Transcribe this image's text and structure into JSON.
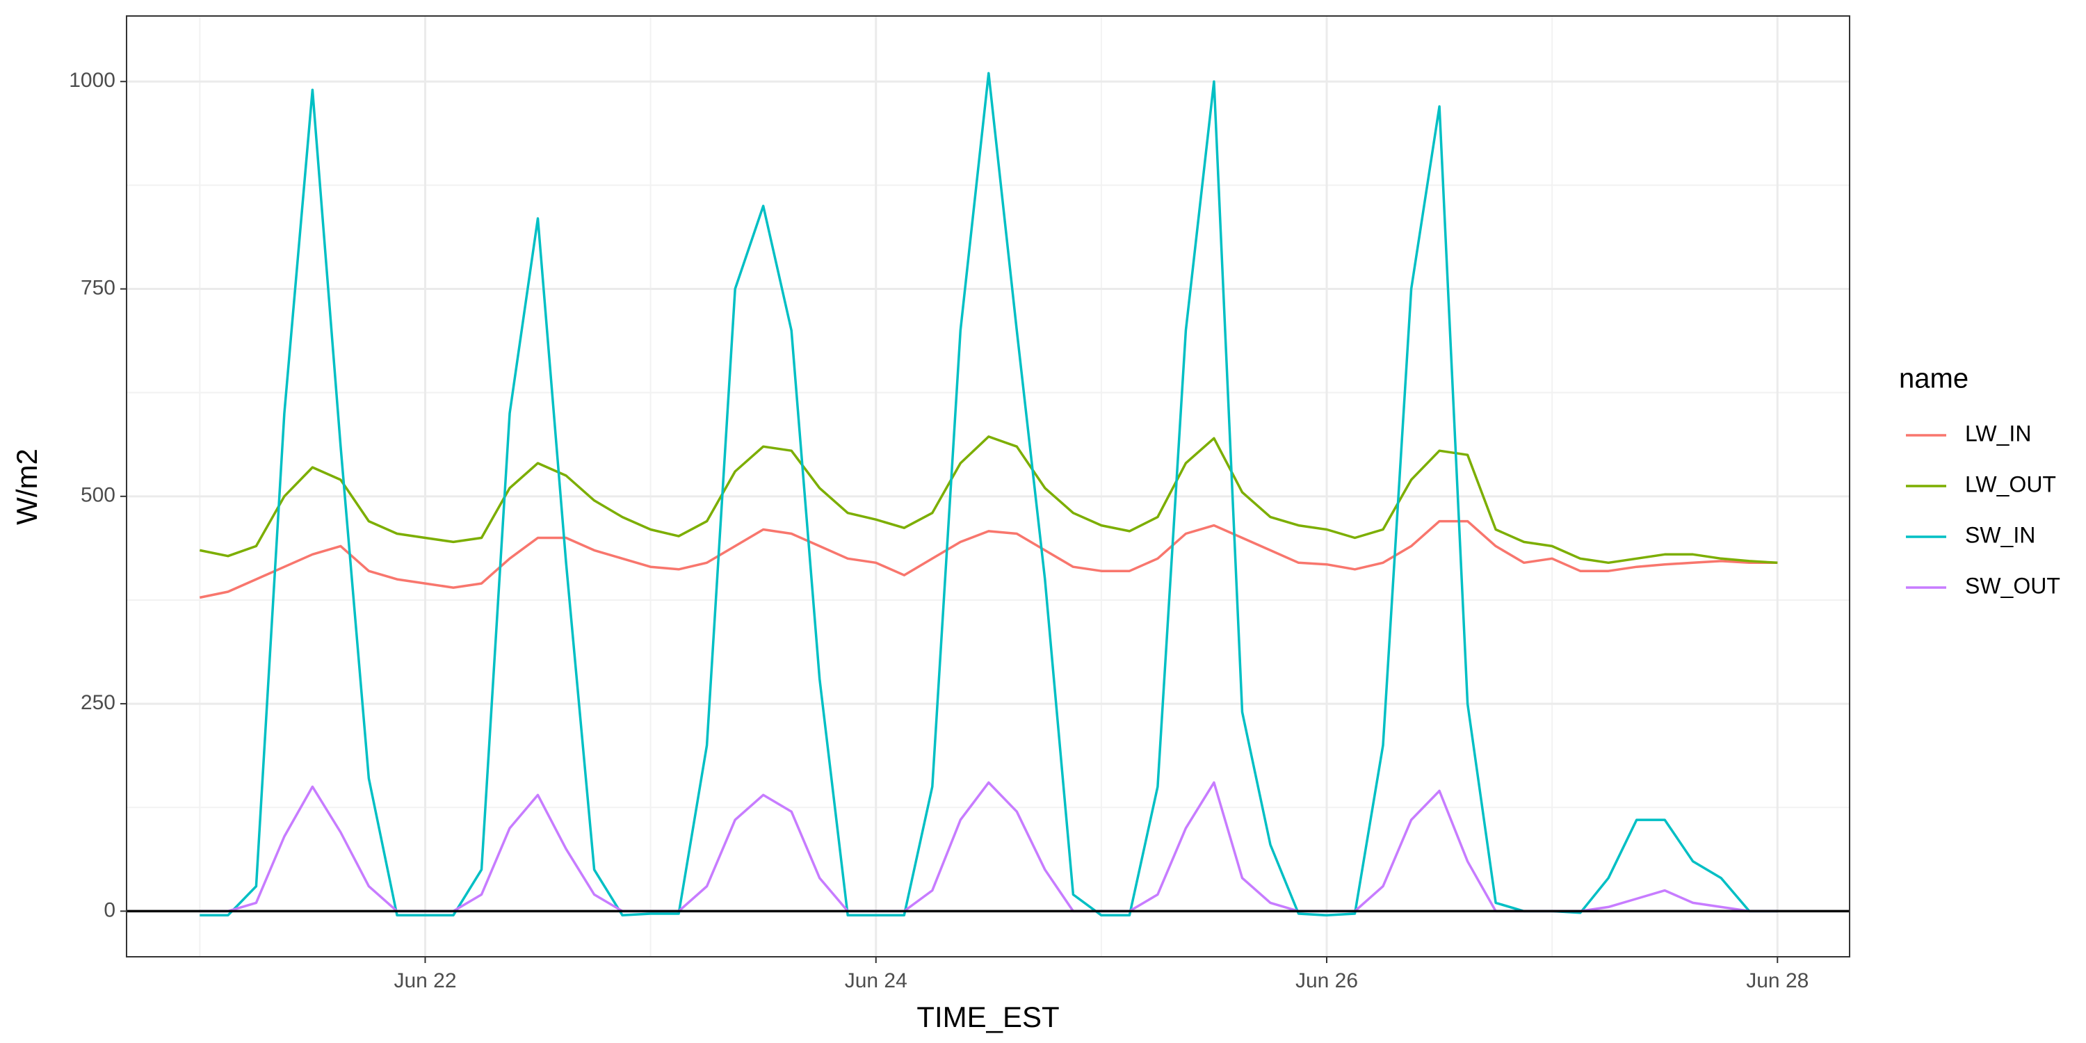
{
  "chart_data": {
    "type": "line",
    "x_label": "TIME_EST",
    "y_label": "W/m2",
    "legend_title": "name",
    "x": [
      21,
      21.125,
      21.25,
      21.375,
      21.5,
      21.625,
      21.75,
      21.875,
      22,
      22.125,
      22.25,
      22.375,
      22.5,
      22.625,
      22.75,
      22.875,
      23,
      23.125,
      23.25,
      23.375,
      23.5,
      23.625,
      23.75,
      23.875,
      24,
      24.125,
      24.25,
      24.375,
      24.5,
      24.625,
      24.75,
      24.875,
      25,
      25.125,
      25.25,
      25.375,
      25.5,
      25.625,
      25.75,
      25.875,
      26,
      26.125,
      26.25,
      26.375,
      26.5,
      26.625,
      26.75,
      26.875,
      27,
      27.125,
      27.25,
      27.375,
      27.5,
      27.625,
      27.75,
      27.875,
      28
    ],
    "series": [
      {
        "name": "LW_IN",
        "color": "#F8766D",
        "values": [
          378,
          385,
          400,
          415,
          430,
          440,
          410,
          400,
          395,
          390,
          395,
          425,
          450,
          450,
          435,
          425,
          415,
          412,
          420,
          440,
          460,
          455,
          440,
          425,
          420,
          405,
          425,
          445,
          458,
          455,
          435,
          415,
          410,
          410,
          425,
          455,
          465,
          450,
          435,
          420,
          418,
          412,
          420,
          440,
          470,
          470,
          440,
          420,
          425,
          410,
          410,
          415,
          418,
          420,
          422,
          420,
          420
        ]
      },
      {
        "name": "LW_OUT",
        "color": "#7CAE00",
        "values": [
          435,
          428,
          440,
          500,
          535,
          520,
          470,
          455,
          450,
          445,
          450,
          510,
          540,
          525,
          495,
          475,
          460,
          452,
          470,
          530,
          560,
          555,
          510,
          480,
          472,
          462,
          480,
          540,
          572,
          560,
          510,
          480,
          465,
          458,
          475,
          540,
          570,
          505,
          475,
          465,
          460,
          450,
          460,
          520,
          555,
          550,
          460,
          445,
          440,
          425,
          420,
          425,
          430,
          430,
          425,
          422,
          420
        ]
      },
      {
        "name": "SW_IN",
        "color": "#00BFC4",
        "values": [
          -5,
          -5,
          30,
          600,
          990,
          560,
          160,
          -5,
          -5,
          -5,
          50,
          600,
          835,
          420,
          50,
          -5,
          -3,
          -3,
          200,
          750,
          850,
          700,
          280,
          -5,
          -5,
          -5,
          150,
          700,
          1010,
          700,
          400,
          20,
          -5,
          -5,
          150,
          700,
          1000,
          240,
          80,
          -3,
          -5,
          -3,
          200,
          750,
          970,
          250,
          10,
          0,
          0,
          -2,
          40,
          110,
          110,
          60,
          40,
          0,
          0
        ]
      },
      {
        "name": "SW_OUT",
        "color": "#C77CFF",
        "values": [
          0,
          0,
          10,
          90,
          150,
          95,
          30,
          0,
          0,
          0,
          20,
          100,
          140,
          75,
          20,
          0,
          0,
          0,
          30,
          110,
          140,
          120,
          40,
          0,
          0,
          0,
          25,
          110,
          155,
          120,
          50,
          0,
          0,
          0,
          20,
          100,
          155,
          40,
          10,
          0,
          0,
          0,
          30,
          110,
          145,
          60,
          0,
          0,
          0,
          0,
          5,
          15,
          25,
          10,
          5,
          0,
          0
        ]
      }
    ],
    "xlim": [
      20.675,
      28.32
    ],
    "ylim": [
      -55,
      1079
    ],
    "xticks": [
      {
        "value": 22,
        "label": "Jun 22"
      },
      {
        "value": 24,
        "label": "Jun 24"
      },
      {
        "value": 26,
        "label": "Jun 26"
      },
      {
        "value": 28,
        "label": "Jun 28"
      }
    ],
    "yticks": [
      0,
      250,
      500,
      750,
      1000
    ],
    "minor_xticks": [
      21,
      23,
      25,
      27
    ],
    "minor_yticks": [
      125,
      375,
      625,
      875
    ],
    "hline": 0,
    "grid": true,
    "legend": "right"
  }
}
